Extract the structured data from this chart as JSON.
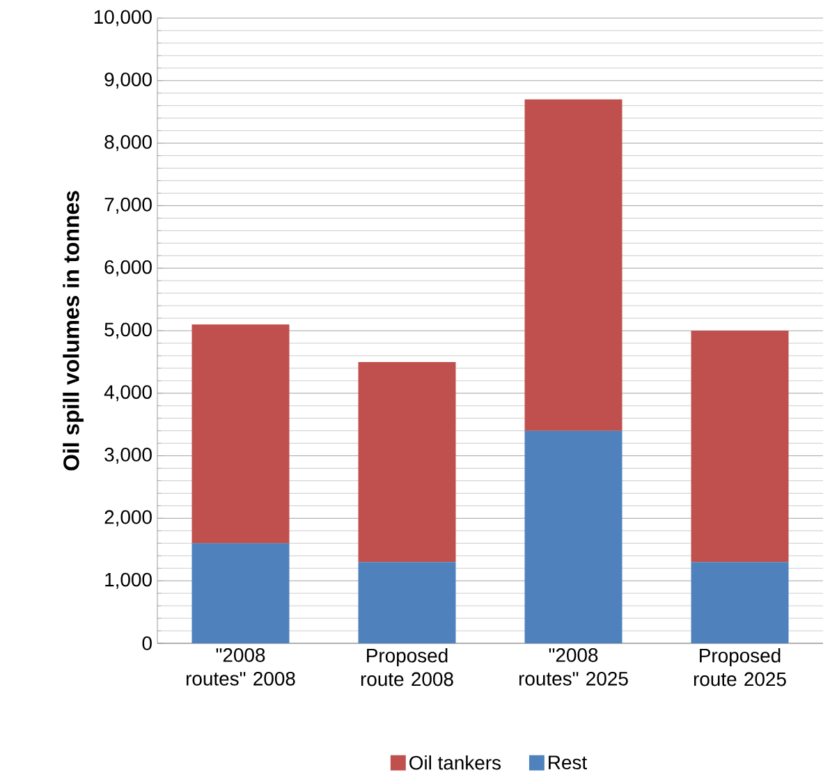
{
  "chart_data": {
    "type": "bar",
    "stacked": true,
    "ylabel": "Oil spill volumes in tonnes",
    "categories": [
      "\"2008 routes\" 2008",
      "Proposed route 2008",
      "\"2008 routes\" 2025",
      "Proposed route 2025"
    ],
    "series": [
      {
        "name": "Rest",
        "color": "#4f81bd",
        "values": [
          1600,
          1300,
          3400,
          1300
        ]
      },
      {
        "name": "Oil tankers",
        "color": "#c0504d",
        "values": [
          3500,
          3200,
          5300,
          3700
        ]
      }
    ],
    "ylim": [
      0,
      10000
    ],
    "yticks": [
      {
        "value": 0,
        "label": "0"
      },
      {
        "value": 1000,
        "label": "1,000"
      },
      {
        "value": 2000,
        "label": "2,000"
      },
      {
        "value": 3000,
        "label": "3,000"
      },
      {
        "value": 4000,
        "label": "4,000"
      },
      {
        "value": 5000,
        "label": "5,000"
      },
      {
        "value": 6000,
        "label": "6,000"
      },
      {
        "value": 7000,
        "label": "7,000"
      },
      {
        "value": 8000,
        "label": "8,000"
      },
      {
        "value": 9000,
        "label": "9,000"
      },
      {
        "value": 10000,
        "label": "10,000"
      }
    ],
    "grid": "y",
    "legend": "bottom"
  }
}
